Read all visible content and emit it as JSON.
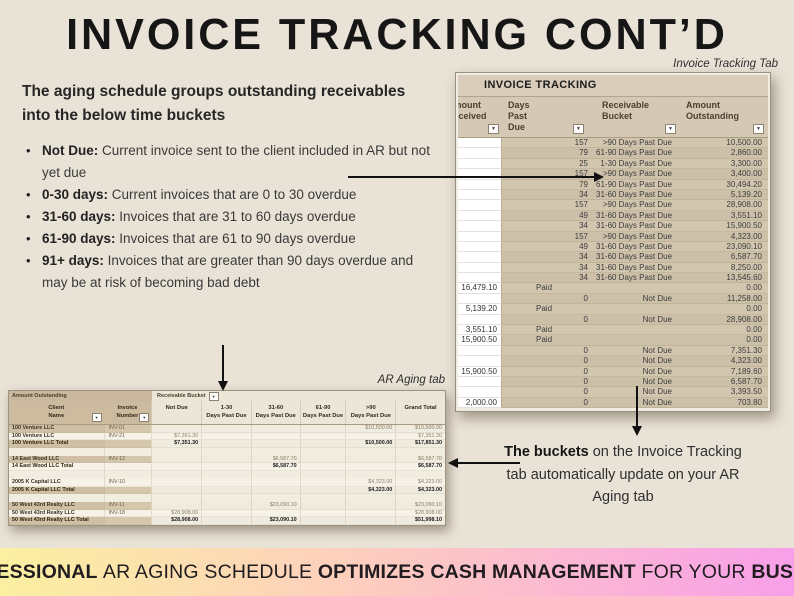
{
  "title": "INVOICE TRACKING CONT’D",
  "labels": {
    "invoice_tracking_tab": "Invoice Tracking Tab",
    "ar_aging_tab": "AR Aging tab"
  },
  "intro": {
    "heading": "The aging schedule groups outstanding receivables into the below time buckets",
    "bullets": [
      {
        "term": "Not Due:",
        "text": "Current invoice sent to the client included in AR but not yet due"
      },
      {
        "term": "0-30 days:",
        "text": "Current invoices that are 0 to 30 overdue"
      },
      {
        "term": "31-60 days:",
        "text": "Invoices that are 31 to 60 days overdue"
      },
      {
        "term": "61-90 days:",
        "text": "Invoices that are 61 to 90 days overdue"
      },
      {
        "term": "91+ days:",
        "text": "Invoices that are greater than 90 days overdue and may be at risk of becoming bad debt"
      }
    ]
  },
  "invoice_tracking": {
    "title": "INVOICE TRACKING",
    "columns": [
      "Amount\nReceived",
      "Days\nPast\nDue",
      "Receivable\nBucket",
      "Amount\nOutstanding"
    ],
    "rows": [
      [
        "",
        "157",
        ">90 Days Past Due",
        "10,500.00"
      ],
      [
        "",
        "79",
        "61-90 Days Past Due",
        "2,860.00"
      ],
      [
        "",
        "25",
        "1-30 Days Past Due",
        "3,300.00"
      ],
      [
        "",
        "157",
        ">90 Days Past Due",
        "3,400.00"
      ],
      [
        "",
        "79",
        "61-90 Days Past Due",
        "30,494.20"
      ],
      [
        "",
        "34",
        "31-60 Days Past Due",
        "5,139.20"
      ],
      [
        "",
        "157",
        ">90 Days Past Due",
        "28,908.00"
      ],
      [
        "",
        "49",
        "31-60 Days Past Due",
        "3,551.10"
      ],
      [
        "",
        "34",
        "31-60 Days Past Due",
        "15,900.50"
      ],
      [
        "",
        "157",
        ">90 Days Past Due",
        "4,323.00"
      ],
      [
        "",
        "49",
        "31-60 Days Past Due",
        "23,090.10"
      ],
      [
        "",
        "34",
        "31-60 Days Past Due",
        "6,587.70"
      ],
      [
        "",
        "34",
        "31-60 Days Past Due",
        "8,250.00"
      ],
      [
        "",
        "34",
        "31-60 Days Past Due",
        "13,545.60"
      ],
      [
        "16,479.10",
        "Paid",
        "",
        "0.00"
      ],
      [
        "",
        "0",
        "Not Due",
        "11,258.00"
      ],
      [
        "5,139.20",
        "Paid",
        "",
        "0.00"
      ],
      [
        "",
        "0",
        "Not Due",
        "28,908.00"
      ],
      [
        "3,551.10",
        "Paid",
        "",
        "0.00"
      ],
      [
        "15,900.50",
        "Paid",
        "",
        "0.00"
      ],
      [
        "",
        "0",
        "Not Due",
        "7,351.30"
      ],
      [
        "",
        "0",
        "Not Due",
        "4,323.00"
      ],
      [
        "15,900.50",
        "0",
        "Not Due",
        "7,189.60"
      ],
      [
        "",
        "0",
        "Not Due",
        "6,587.70"
      ],
      [
        "",
        "0",
        "Not Due",
        "3,393.50"
      ],
      [
        "2,000.00",
        "0",
        "Not Due",
        "703.80"
      ]
    ]
  },
  "ar_aging": {
    "corner_label": "Amount Outstanding",
    "bucket_label": "Receivable Bucket",
    "columns": [
      "Client\nName",
      "Invoice\nNumber",
      "Not Due",
      "1-30\nDays Past Due",
      "31-60\nDays Past Due",
      "61-90\nDays Past Due",
      ">90\nDays Past Due",
      "Grand Total"
    ],
    "rows": [
      {
        "cells": [
          "100 Venture LLC",
          "INV-01",
          "",
          "",
          "",
          "",
          "$10,500.00",
          "$10,500.00"
        ],
        "type": "data"
      },
      {
        "cells": [
          "100 Venture LLC",
          "INV-21",
          "$7,351.30",
          "",
          "",
          "",
          "",
          "$7,351.30"
        ],
        "type": "data"
      },
      {
        "cells": [
          "100 Venture LLC Total",
          "",
          "$7,351.30",
          "",
          "",
          "",
          "$10,500.00",
          "$17,851.30"
        ],
        "type": "total"
      },
      {
        "cells": [
          "",
          "",
          "",
          "",
          "",
          "",
          "",
          ""
        ],
        "type": "blank"
      },
      {
        "cells": [
          "14 East Wood LLC",
          "INV-12",
          "",
          "",
          "$6,587.70",
          "",
          "",
          "$6,587.70"
        ],
        "type": "data"
      },
      {
        "cells": [
          "14 East Wood LLC Total",
          "",
          "",
          "",
          "$6,587.70",
          "",
          "",
          "$6,587.70"
        ],
        "type": "total"
      },
      {
        "cells": [
          "",
          "",
          "",
          "",
          "",
          "",
          "",
          ""
        ],
        "type": "blank"
      },
      {
        "cells": [
          "2005 K Capital LLC",
          "INV-10",
          "",
          "",
          "",
          "",
          "$4,323.00",
          "$4,323.00"
        ],
        "type": "data"
      },
      {
        "cells": [
          "2005 K Capital LLC Total",
          "",
          "",
          "",
          "",
          "",
          "$4,323.00",
          "$4,323.00"
        ],
        "type": "total"
      },
      {
        "cells": [
          "",
          "",
          "",
          "",
          "",
          "",
          "",
          ""
        ],
        "type": "blank"
      },
      {
        "cells": [
          "50 West 43rd Realty LLC",
          "INV-11",
          "",
          "",
          "$23,090.10",
          "",
          "",
          "$23,090.10"
        ],
        "type": "data"
      },
      {
        "cells": [
          "50 West 43rd Realty LLC",
          "INV-18",
          "$28,908.00",
          "",
          "",
          "",
          "",
          "$28,908.00"
        ],
        "type": "data"
      },
      {
        "cells": [
          "50 West 43rd Realty LLC Total",
          "",
          "$28,908.00",
          "",
          "$23,090.10",
          "",
          "",
          "$51,998.10"
        ],
        "type": "total"
      }
    ]
  },
  "note": {
    "bold": "The buckets",
    "rest": " on the Invoice Tracking tab automatically update on your AR Aging tab"
  },
  "banner": {
    "segments": [
      {
        "text": "PROFESSIONAL ",
        "bold": true
      },
      {
        "text": "AR AGING SCHEDULE ",
        "bold": false
      },
      {
        "text": "OPTIMIZES CASH MANAGEMENT ",
        "bold": true
      },
      {
        "text": "FOR YOUR ",
        "bold": false
      },
      {
        "text": "BUSINESS",
        "bold": true
      }
    ]
  },
  "colors": {
    "page_background": "#e9e2d6",
    "sheet_tan_header": "#d5c8b4",
    "sheet_tan_dark": "#cdbb9f",
    "banner_yellow": "#fbf0a1",
    "banner_pink": "#fdccc0",
    "banner_magenta": "#f89fe9",
    "text_dark": "#161616"
  },
  "icons": {
    "filter_glyph": "▼"
  }
}
